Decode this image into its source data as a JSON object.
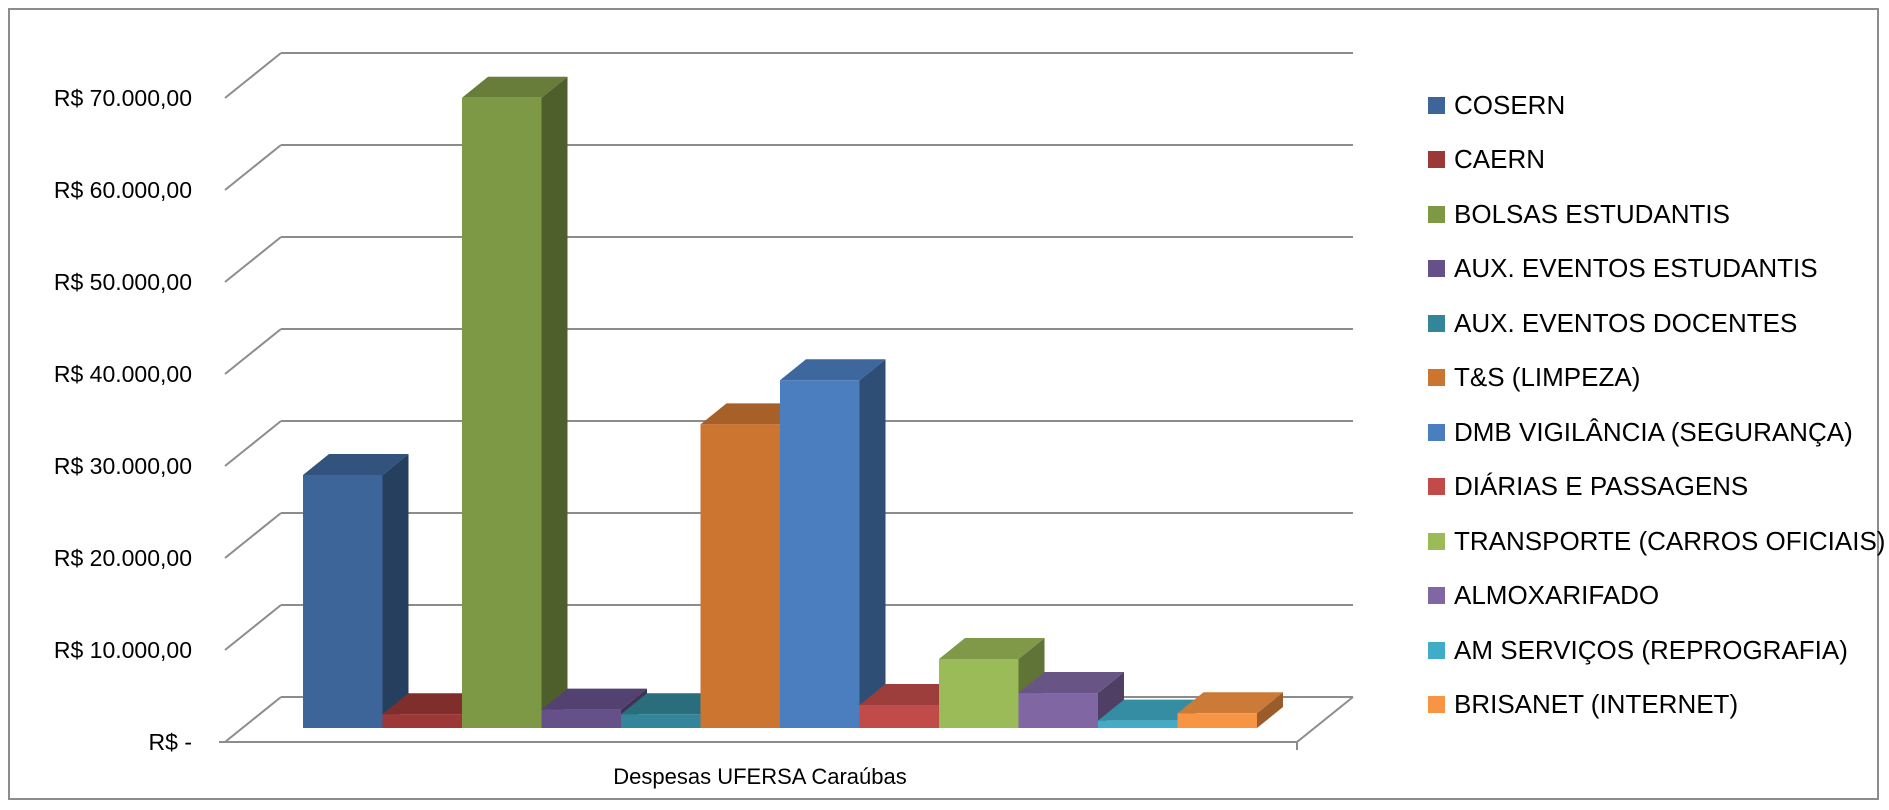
{
  "chart_data": {
    "type": "bar",
    "xlabel": "Despesas UFERSA Caraúbas",
    "ylabel": "",
    "ylim": [
      0,
      70000
    ],
    "yticks": [
      "R$ -",
      "R$ 10.000,00",
      "R$ 20.000,00",
      "R$ 30.000,00",
      "R$ 40.000,00",
      "R$ 50.000,00",
      "R$ 60.000,00",
      "R$ 70.000,00"
    ],
    "grid": true,
    "legend_position": "right",
    "categories": [
      "Despesas UFERSA Caraúbas"
    ],
    "series": [
      {
        "name": "COSERN",
        "values": [
          27500
        ],
        "color": "#3d6599"
      },
      {
        "name": "CAERN",
        "values": [
          1500
        ],
        "color": "#9c3836"
      },
      {
        "name": "BOLSAS ESTUDANTIS",
        "values": [
          68500
        ],
        "color": "#7d9945"
      },
      {
        "name": "AUX. EVENTOS ESTUDANTIS",
        "values": [
          2000
        ],
        "color": "#65508a"
      },
      {
        "name": "AUX. EVENTOS DOCENTES",
        "values": [
          1500
        ],
        "color": "#338599"
      },
      {
        "name": "T&S (LIMPEZA)",
        "values": [
          33000
        ],
        "color": "#cc7530"
      },
      {
        "name": "DMB VIGILÂNCIA (SEGURANÇA)",
        "values": [
          37800
        ],
        "color": "#4a7ebf"
      },
      {
        "name": "DIÁRIAS E PASSAGENS",
        "values": [
          2500
        ],
        "color": "#c04b49"
      },
      {
        "name": "TRANSPORTE (CARROS OFICIAIS)",
        "values": [
          7500
        ],
        "color": "#9bbb58"
      },
      {
        "name": "ALMOXARIFADO",
        "values": [
          3800
        ],
        "color": "#8066a3"
      },
      {
        "name": "AM SERVIÇOS (REPROGRAFIA)",
        "values": [
          800
        ],
        "color": "#41acc7"
      },
      {
        "name": "BRISANET (INTERNET)",
        "values": [
          1600
        ],
        "color": "#f79544"
      }
    ]
  }
}
